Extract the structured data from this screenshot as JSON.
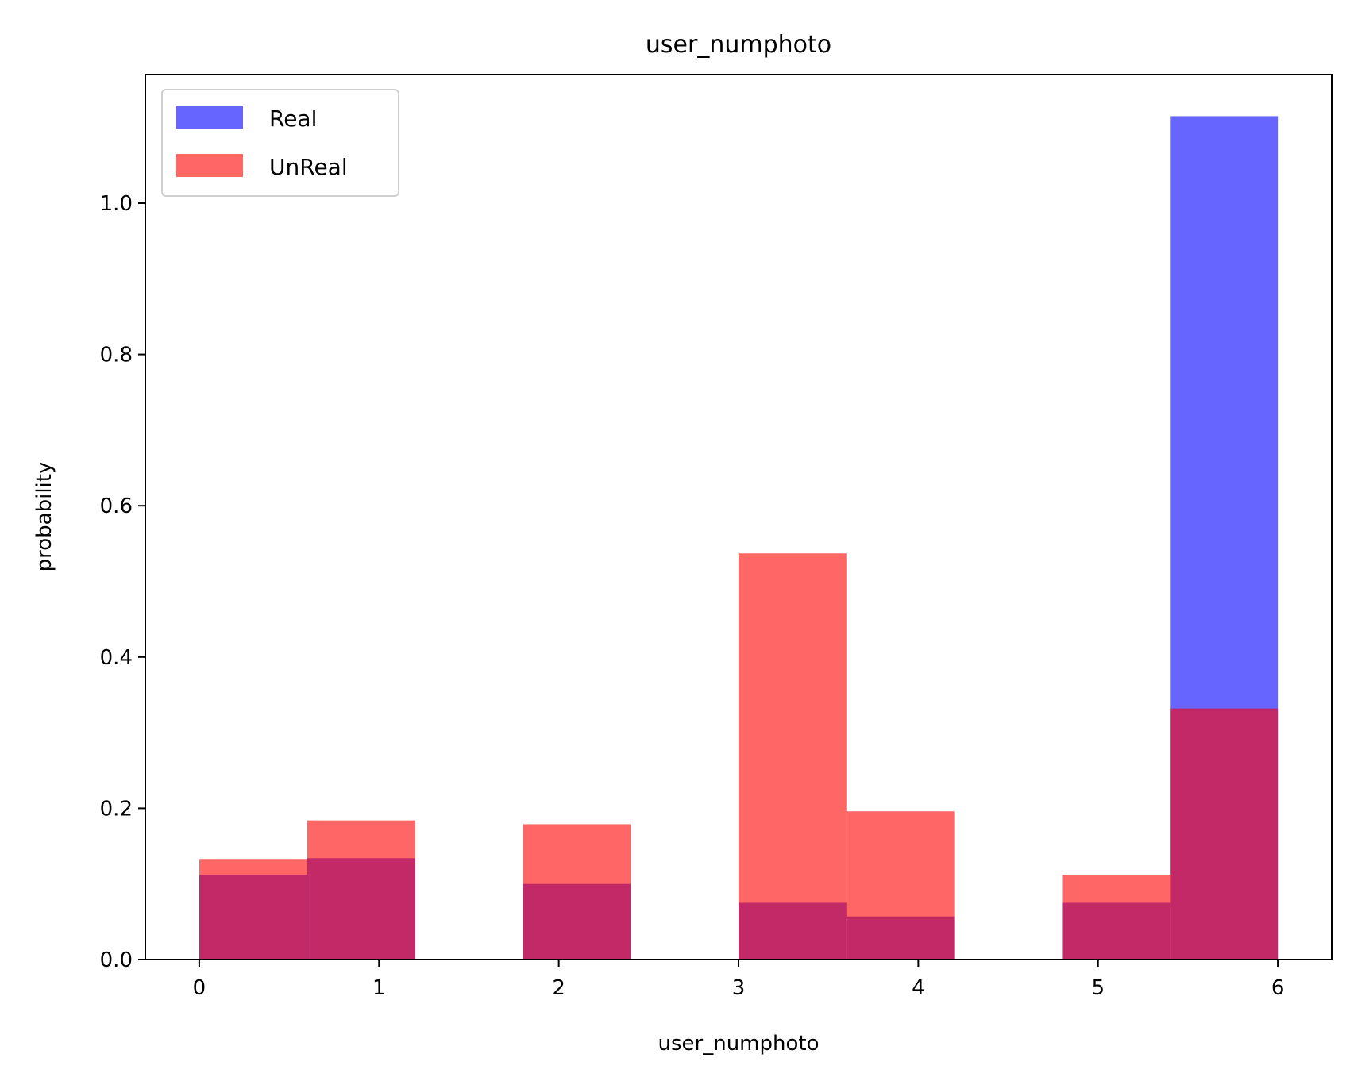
{
  "chart_data": {
    "type": "bar",
    "title": "user_numphoto",
    "xlabel": "user_numphoto",
    "ylabel": "probability",
    "xlim": [
      -0.3,
      6.3
    ],
    "ylim": [
      0,
      1.17
    ],
    "x_ticks": [
      0,
      1,
      2,
      3,
      4,
      5,
      6
    ],
    "x_tick_labels": [
      "0",
      "1",
      "2",
      "3",
      "4",
      "5",
      "6"
    ],
    "y_ticks": [
      0,
      0.2,
      0.4,
      0.6,
      0.8,
      1.0
    ],
    "y_tick_labels": [
      "0.0",
      "0.2",
      "0.4",
      "0.6",
      "0.8",
      "1.0"
    ],
    "grid": false,
    "legend_position": "top-left",
    "bin_edges": [
      0,
      0.6,
      1.2,
      1.8,
      2.4,
      3.0,
      3.6,
      4.2,
      4.8,
      5.4,
      6.0
    ],
    "series": [
      {
        "name": "Real",
        "color": "#0000ff",
        "alpha": 0.6,
        "values": [
          0.112,
          0.134,
          0.0,
          0.1,
          0.0,
          0.075,
          0.057,
          0.0,
          0.075,
          1.115
        ]
      },
      {
        "name": "UnReal",
        "color": "#ff0000",
        "alpha": 0.6,
        "values": [
          0.133,
          0.184,
          0.0,
          0.179,
          0.0,
          0.537,
          0.196,
          0.0,
          0.112,
          0.332
        ]
      }
    ]
  }
}
